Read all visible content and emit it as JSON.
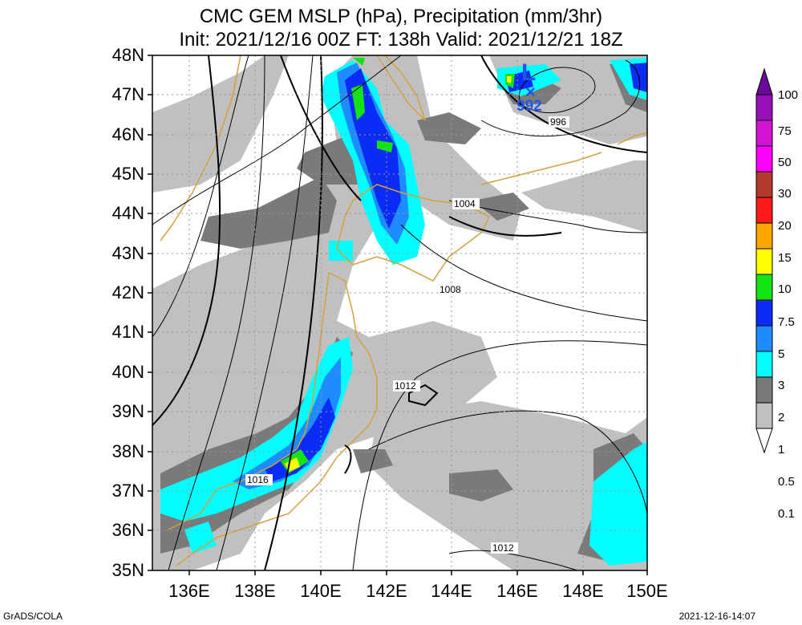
{
  "title_line1": "CMC GEM MSLP (hPa), Precipitation (mm/3hr)",
  "title_line2": "Init: 2021/12/16 00Z  FT: 138h  Valid: 2021/12/21 18Z",
  "lat_labels": [
    "48N",
    "47N",
    "46N",
    "45N",
    "44N",
    "43N",
    "42N",
    "41N",
    "40N",
    "39N",
    "38N",
    "37N",
    "36N",
    "35N"
  ],
  "lon_labels": [
    "136E",
    "138E",
    "140E",
    "142E",
    "144E",
    "146E",
    "148E",
    "150E"
  ],
  "isobar_labels": [
    "996",
    "1004",
    "1008",
    "1012",
    "1016",
    "1012"
  ],
  "low_center": {
    "symbol": "L",
    "marker": "×",
    "pressure": "992"
  },
  "colorbar": {
    "labels": [
      "100",
      "75",
      "50",
      "30",
      "20",
      "15",
      "10",
      "7.5",
      "5",
      "3",
      "2",
      "1",
      "0.5",
      "0.1"
    ],
    "colors": [
      "#6a0a9a",
      "#9a10b8",
      "#d414d4",
      "#ff00ff",
      "#b23a2e",
      "#ff1a1a",
      "#ffa500",
      "#ffff00",
      "#13e313",
      "#0a2cf5",
      "#1e8cff",
      "#00ffff",
      "#7a7a7a",
      "#c0c0c0"
    ]
  },
  "credit": "GrADS/COLA",
  "timestamp": "2021-12-16-14:07"
}
